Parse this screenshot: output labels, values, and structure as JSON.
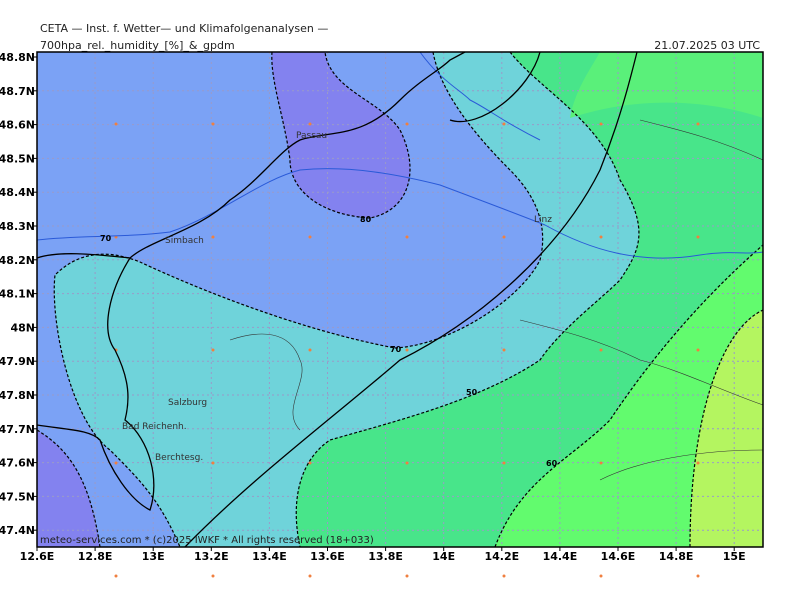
{
  "header": {
    "institute": "CETA — Inst. f. Wetter— und Klimafolgenanalysen —",
    "product_prefix": "700hpa_rel._humidity_",
    "unit": "[%]",
    "product_suffix": "_&_gpdm",
    "valid_time": "21.07.2025 03 UTC"
  },
  "y_axis_labels": [
    "48.8N",
    "48.7N",
    "48.6N",
    "48.5N",
    "48.4N",
    "48.3N",
    "48.2N",
    "48.1N",
    "48N",
    "47.9N",
    "47.8N",
    "47.7N",
    "47.6N",
    "47.5N",
    "47.4N"
  ],
  "x_axis_labels": [
    "12.6E",
    "12.8E",
    "13E",
    "13.2E",
    "13.4E",
    "13.6E",
    "13.8E",
    "14E",
    "14.2E",
    "14.4E",
    "14.6E",
    "14.8E",
    "15E"
  ],
  "places": [
    "Passau",
    "Linz",
    "Simbach",
    "Salzburg",
    "Bad Reichenh.",
    "Berchtesg."
  ],
  "contour_labels": [
    "80",
    "70",
    "70",
    "50",
    "60"
  ],
  "footer": "meteo-services.com * (c)2025 IWKF * All rights reserved (18+033)"
}
